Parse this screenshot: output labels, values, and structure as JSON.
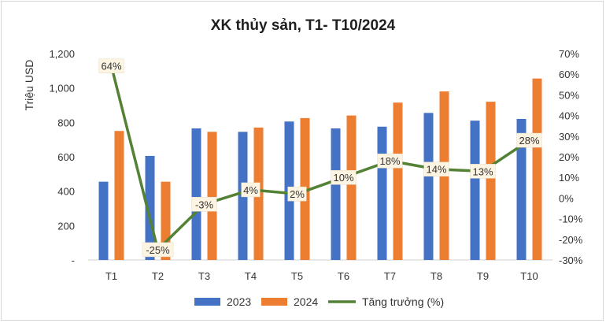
{
  "chart_data": {
    "type": "bar",
    "title": "XK thủy sản, T1- T10/2024",
    "ylabel": "Triệu USD",
    "categories": [
      "T1",
      "T2",
      "T3",
      "T4",
      "T5",
      "T6",
      "T7",
      "T8",
      "T9",
      "T10"
    ],
    "series": [
      {
        "name": "2023",
        "type": "bar",
        "axis": "left",
        "color": "#4472C4",
        "values": [
          455,
          605,
          765,
          745,
          805,
          765,
          775,
          855,
          810,
          820
        ]
      },
      {
        "name": "2024",
        "type": "bar",
        "axis": "left",
        "color": "#ED7D31",
        "values": [
          750,
          455,
          745,
          770,
          825,
          840,
          915,
          980,
          920,
          1055
        ]
      },
      {
        "name": "Tăng trưởng (%)",
        "type": "line",
        "axis": "right",
        "color": "#548235",
        "values": [
          64,
          -25,
          -3,
          4,
          2,
          10,
          18,
          14,
          13,
          28
        ],
        "labels": [
          "64%",
          "-25%",
          "-3%",
          "4%",
          "2%",
          "10%",
          "18%",
          "14%",
          "13%",
          "28%"
        ]
      }
    ],
    "left_axis": {
      "ylim": [
        0,
        1200
      ],
      "ticks": [
        0,
        200,
        400,
        600,
        800,
        1000,
        1200
      ],
      "tick_labels": [
        "-",
        "200",
        "400",
        "600",
        "800",
        "1,000",
        "1,200"
      ]
    },
    "right_axis": {
      "ylim": [
        -30,
        70
      ],
      "ticks": [
        70,
        60,
        50,
        40,
        30,
        20,
        10,
        0,
        -10,
        -20,
        -30
      ],
      "tick_labels": [
        "70%",
        "60%",
        "50%",
        "40%",
        "30%",
        "20%",
        "10%",
        "0%",
        "-10%",
        "-20%",
        "-30%"
      ]
    },
    "grid": false,
    "legend": "bottom"
  }
}
